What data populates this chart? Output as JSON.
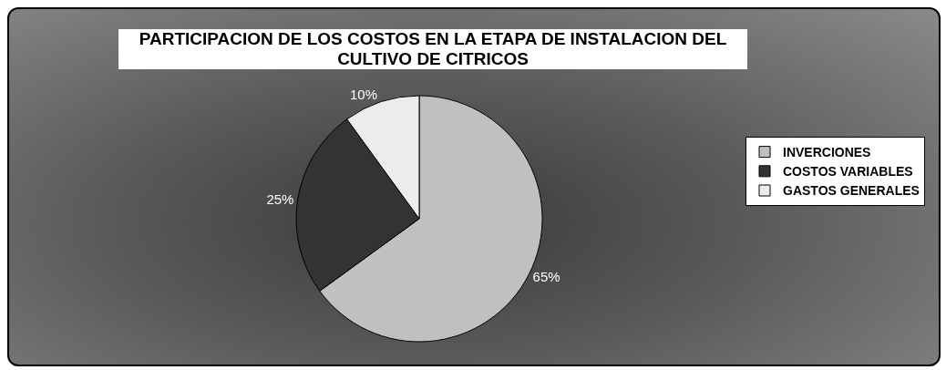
{
  "chart_data": {
    "type": "pie",
    "title": "PARTICIPACION DE LOS COSTOS EN LA ETAPA DE INSTALACION DEL CULTIVO DE CITRICOS",
    "categories": [
      "INVERCIONES",
      "COSTOS VARIABLES",
      "GASTOS GENERALES"
    ],
    "values": [
      65,
      25,
      10
    ],
    "colors": [
      "#c0c0c0",
      "#333333",
      "#ececec"
    ],
    "value_labels": [
      "65%",
      "25%",
      "10%"
    ],
    "legend": "right"
  }
}
